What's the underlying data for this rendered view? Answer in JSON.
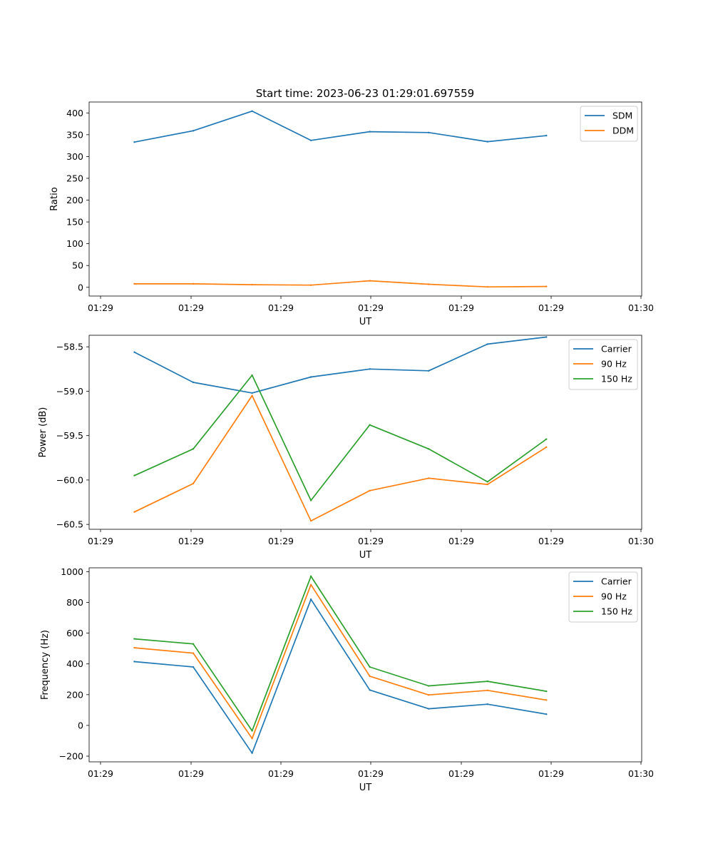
{
  "title": "Start time: 2023-06-23 01:29:01.697559",
  "colors": {
    "blue": "#1f77b4",
    "orange": "#ff7f0e",
    "green": "#2ca02c"
  },
  "chart_data": [
    {
      "type": "line",
      "xlabel": "UT",
      "ylabel": "Ratio",
      "x_ticks": [
        "01:29",
        "01:29",
        "01:29",
        "01:29",
        "01:29",
        "01:29",
        "01:30"
      ],
      "y_ticks": [
        "0",
        "50",
        "100",
        "150",
        "200",
        "250",
        "300",
        "350",
        "400"
      ],
      "ylim": [
        -20,
        425
      ],
      "x": [
        1,
        2,
        3,
        4,
        5,
        6,
        7,
        8
      ],
      "legend": "top-right",
      "series": [
        {
          "name": "SDM",
          "color": "#1f77b4",
          "values": [
            333,
            359,
            404,
            337,
            357,
            355,
            334,
            348
          ]
        },
        {
          "name": "DDM",
          "color": "#ff7f0e",
          "values": [
            8,
            8,
            6,
            5,
            15,
            7,
            1,
            2
          ]
        }
      ]
    },
    {
      "type": "line",
      "xlabel": "UT",
      "ylabel": "Power (dB)",
      "x_ticks": [
        "01:29",
        "01:29",
        "01:29",
        "01:29",
        "01:29",
        "01:29",
        "01:30"
      ],
      "y_ticks": [
        "−60.5",
        "−60.0",
        "−59.5",
        "−59.0",
        "−58.5"
      ],
      "ylim": [
        -60.555,
        -58.37
      ],
      "x": [
        1,
        2,
        3,
        4,
        5,
        6,
        7,
        8
      ],
      "legend": "top-right",
      "series": [
        {
          "name": "Carrier",
          "color": "#1f77b4",
          "values": [
            -58.56,
            -58.9,
            -59.02,
            -58.84,
            -58.75,
            -58.77,
            -58.47,
            -58.39
          ]
        },
        {
          "name": "90 Hz",
          "color": "#ff7f0e",
          "values": [
            -60.36,
            -60.04,
            -59.05,
            -60.46,
            -60.12,
            -59.98,
            -60.05,
            -59.63
          ]
        },
        {
          "name": "150 Hz",
          "color": "#2ca02c",
          "values": [
            -59.95,
            -59.65,
            -58.82,
            -60.23,
            -59.38,
            -59.65,
            -60.02,
            -59.54
          ]
        }
      ]
    },
    {
      "type": "line",
      "xlabel": "UT",
      "ylabel": "Frequency (Hz)",
      "x_ticks": [
        "01:29",
        "01:29",
        "01:29",
        "01:29",
        "01:29",
        "01:29",
        "01:30"
      ],
      "y_ticks": [
        "−200",
        "0",
        "200",
        "400",
        "600",
        "800",
        "1000"
      ],
      "ylim": [
        -237,
        1025
      ],
      "x": [
        1,
        2,
        3,
        4,
        5,
        6,
        7,
        8
      ],
      "legend": "top-right",
      "series": [
        {
          "name": "Carrier",
          "color": "#1f77b4",
          "values": [
            415,
            380,
            -180,
            820,
            230,
            108,
            138,
            73
          ]
        },
        {
          "name": "90 Hz",
          "color": "#ff7f0e",
          "values": [
            505,
            470,
            -85,
            915,
            320,
            198,
            228,
            165
          ]
        },
        {
          "name": "150 Hz",
          "color": "#2ca02c",
          "values": [
            563,
            530,
            -35,
            970,
            380,
            257,
            287,
            222
          ]
        }
      ]
    }
  ]
}
